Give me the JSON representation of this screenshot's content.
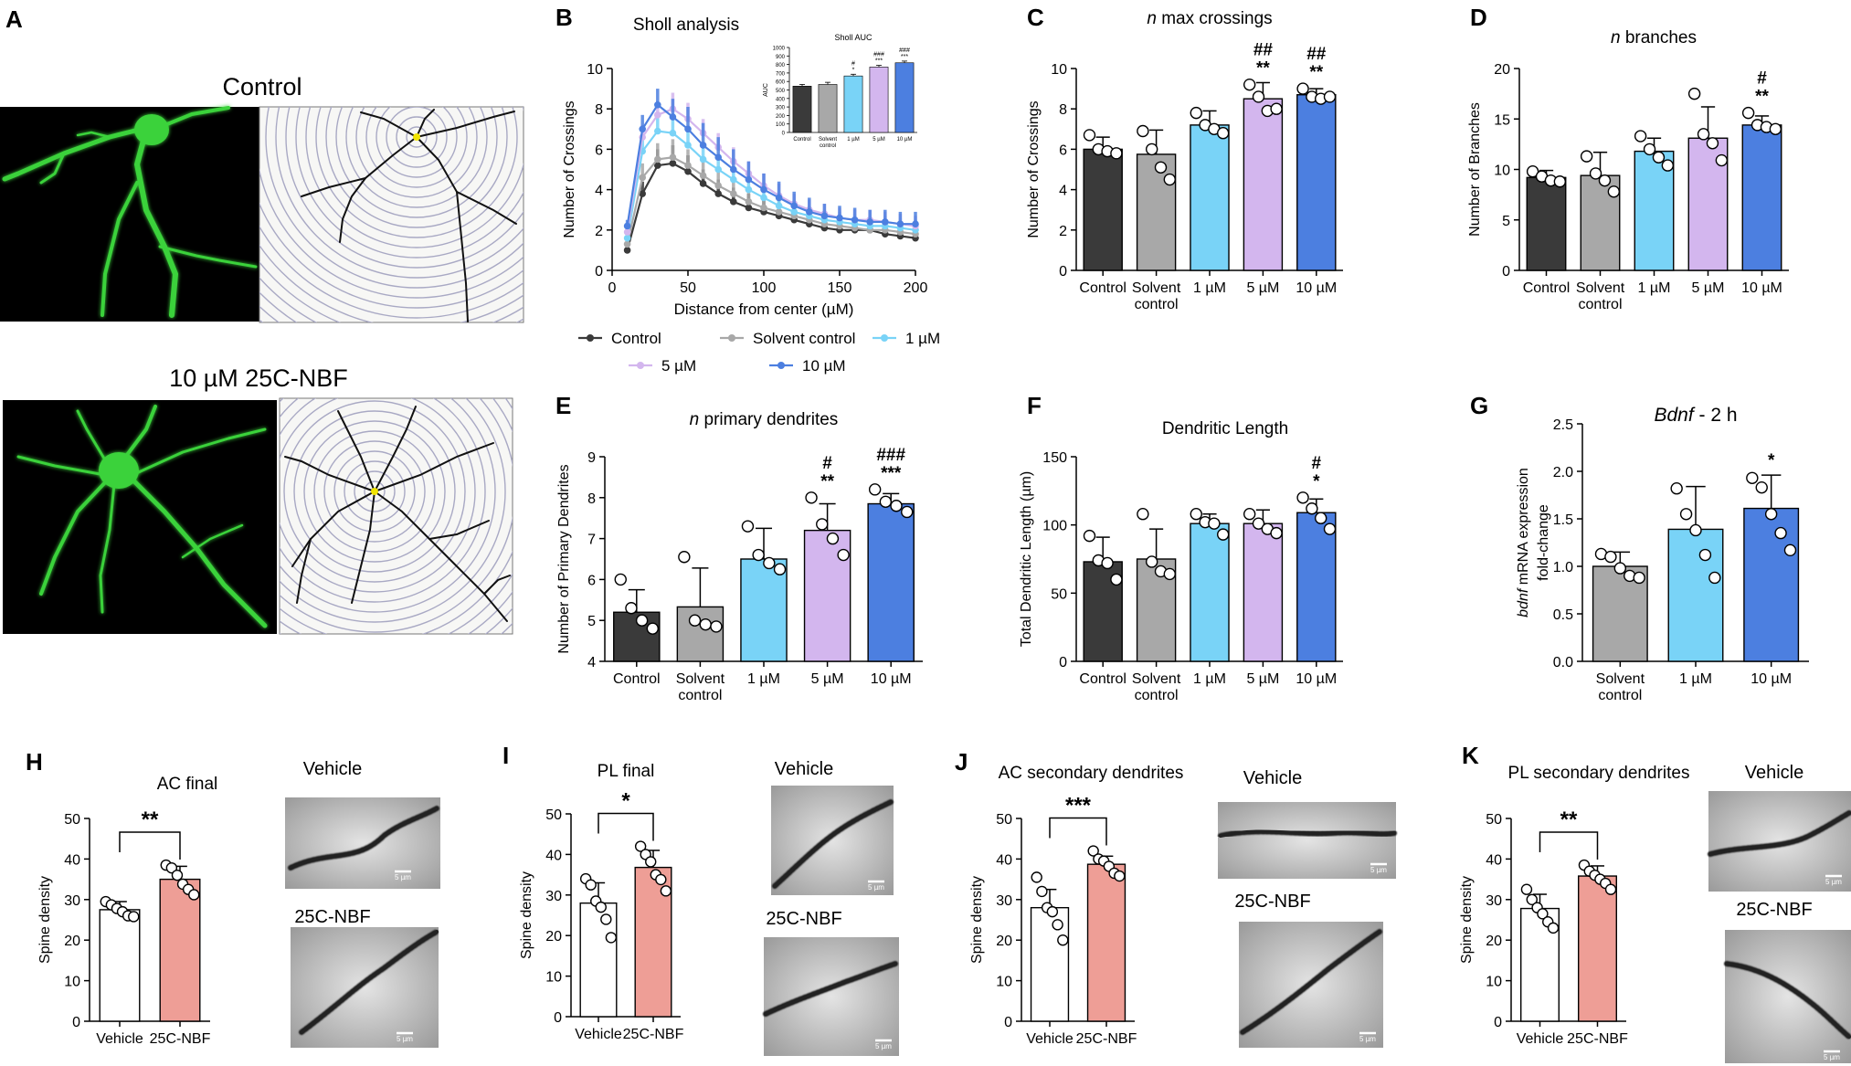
{
  "colors": {
    "control": "#3a3a3a",
    "solvent": "#a8a8a8",
    "um1": "#79d3f7",
    "um5": "#d3b6ee",
    "um10": "#4c7fe0",
    "vehicle": "#ffffff",
    "nbf": "#ee9e96",
    "neuron_green": "#3bd23b"
  },
  "panel_A": {
    "letter": "A",
    "top_title": "Control",
    "bottom_title": "10 µM 25C-NBF"
  },
  "micrographs": {
    "vehicle_label": "Vehicle",
    "treated_label": "25C-NBF",
    "scale_label": "5 µm"
  },
  "chart_data": [
    {
      "id": "B",
      "letter": "B",
      "type": "line",
      "title": "Sholl analysis",
      "xlabel": "Distance from center  (µM)",
      "ylabel": "Number of Crossings",
      "xlim": [
        0,
        200
      ],
      "ylim": [
        0,
        10
      ],
      "xticks": [
        0,
        50,
        100,
        150,
        200
      ],
      "yticks": [
        0,
        2,
        4,
        6,
        8,
        10
      ],
      "x": [
        10,
        20,
        30,
        40,
        50,
        60,
        70,
        80,
        90,
        100,
        110,
        120,
        130,
        140,
        150,
        160,
        170,
        180,
        190,
        200
      ],
      "legend": [
        "Control",
        "Solvent control",
        "1 µM",
        "5 µM",
        "10 µM"
      ],
      "series": [
        {
          "name": "Control",
          "color_key": "control",
          "values": [
            1.0,
            3.8,
            5.2,
            5.3,
            4.9,
            4.3,
            3.8,
            3.4,
            3.1,
            2.9,
            2.7,
            2.5,
            2.3,
            2.1,
            2.0,
            2.0,
            2.0,
            1.8,
            1.7,
            1.6
          ],
          "err": [
            0.3,
            0.6,
            0.8,
            0.9,
            0.8,
            0.7,
            0.7,
            0.7,
            0.7,
            0.6,
            0.6,
            0.6,
            0.5,
            0.5,
            0.5,
            0.5,
            0.5,
            0.5,
            0.5,
            0.5
          ]
        },
        {
          "name": "Solvent control",
          "color_key": "solvent",
          "values": [
            1.3,
            4.6,
            5.5,
            5.6,
            5.2,
            4.7,
            4.2,
            3.8,
            3.4,
            3.1,
            2.9,
            2.7,
            2.5,
            2.3,
            2.2,
            2.1,
            2.0,
            2.0,
            1.9,
            1.8
          ],
          "err": [
            0.3,
            0.7,
            0.8,
            0.9,
            0.8,
            0.7,
            0.7,
            0.7,
            0.6,
            0.6,
            0.6,
            0.5,
            0.5,
            0.5,
            0.5,
            0.5,
            0.5,
            0.5,
            0.5,
            0.5
          ]
        },
        {
          "name": "1 µM",
          "color_key": "um1",
          "values": [
            1.6,
            5.9,
            6.9,
            6.8,
            6.2,
            5.5,
            5.0,
            4.5,
            4.0,
            3.6,
            3.2,
            2.9,
            2.7,
            2.5,
            2.4,
            2.3,
            2.2,
            2.2,
            2.1,
            2.0
          ],
          "err": [
            0.3,
            0.6,
            0.7,
            0.8,
            0.8,
            0.7,
            0.7,
            0.6,
            0.6,
            0.6,
            0.5,
            0.5,
            0.5,
            0.5,
            0.5,
            0.5,
            0.5,
            0.5,
            0.5,
            0.5
          ]
        },
        {
          "name": "5 µM",
          "color_key": "um5",
          "values": [
            1.9,
            6.6,
            7.7,
            8.0,
            7.5,
            6.8,
            6.1,
            5.4,
            4.8,
            4.2,
            3.7,
            3.3,
            3.0,
            2.8,
            2.6,
            2.5,
            2.5,
            2.4,
            2.3,
            2.2
          ],
          "err": [
            0.3,
            0.6,
            0.7,
            0.8,
            0.8,
            0.7,
            0.7,
            0.7,
            0.6,
            0.6,
            0.6,
            0.5,
            0.5,
            0.5,
            0.5,
            0.5,
            0.5,
            0.5,
            0.5,
            0.5
          ]
        },
        {
          "name": "10 µM",
          "color_key": "um10",
          "values": [
            2.2,
            7.0,
            8.2,
            7.6,
            7.0,
            6.2,
            5.6,
            5.0,
            4.5,
            4.0,
            3.6,
            3.2,
            2.9,
            2.7,
            2.6,
            2.5,
            2.4,
            2.4,
            2.3,
            2.3
          ],
          "err": [
            0.3,
            0.7,
            0.8,
            0.9,
            1.1,
            1.1,
            1.0,
            1.0,
            0.9,
            0.8,
            0.8,
            0.7,
            0.7,
            0.6,
            0.6,
            0.6,
            0.6,
            0.6,
            0.6,
            0.6
          ]
        }
      ]
    },
    {
      "id": "B_inset",
      "type": "bar",
      "title": "Sholl AUC",
      "ylabel": "AUC",
      "ylim": [
        0,
        1000
      ],
      "yticks": [
        0,
        100,
        200,
        300,
        400,
        500,
        600,
        700,
        800,
        900,
        1000
      ],
      "categories": [
        "Control",
        "Solvent control",
        "1 µM",
        "5 µM",
        "10 µM"
      ],
      "color_keys": [
        "control",
        "solvent",
        "um1",
        "um5",
        "um10"
      ],
      "values": [
        545,
        565,
        665,
        770,
        820
      ],
      "err": [
        20,
        25,
        20,
        20,
        20
      ],
      "annotations": [
        {
          "index": 2,
          "lines": [
            "#",
            "*"
          ]
        },
        {
          "index": 3,
          "lines": [
            "###",
            "***"
          ]
        },
        {
          "index": 4,
          "lines": [
            "###",
            "***"
          ]
        }
      ]
    },
    {
      "id": "C",
      "letter": "C",
      "type": "bar",
      "title": "n max crossings",
      "title_italic_prefix": "n",
      "title_rest": " max crossings",
      "ylabel": "Number of Crossings",
      "ylim": [
        0,
        10
      ],
      "yticks": [
        0,
        2,
        4,
        6,
        8,
        10
      ],
      "categories": [
        "Control",
        "Solvent control",
        "1 µM",
        "5 µM",
        "10 µM"
      ],
      "color_keys": [
        "control",
        "solvent",
        "um1",
        "um5",
        "um10"
      ],
      "values": [
        6.0,
        5.75,
        7.2,
        8.5,
        8.7
      ],
      "err": [
        0.6,
        1.2,
        0.7,
        0.8,
        0.3
      ],
      "points": [
        [
          6.7,
          6.0,
          5.9,
          5.8
        ],
        [
          6.9,
          6.0,
          5.1,
          4.5
        ],
        [
          7.8,
          7.2,
          7.0,
          6.8
        ],
        [
          9.2,
          8.6,
          7.9,
          8.0
        ],
        [
          9.0,
          8.6,
          8.5,
          8.6
        ]
      ],
      "annotations": [
        {
          "index": 3,
          "lines": [
            "##",
            "**"
          ]
        },
        {
          "index": 4,
          "lines": [
            "##",
            "**"
          ]
        }
      ]
    },
    {
      "id": "D",
      "letter": "D",
      "type": "bar",
      "title": "n branches",
      "title_italic_prefix": "n",
      "title_rest": " branches",
      "ylabel": "Number of Branches",
      "ylim": [
        0,
        20
      ],
      "yticks": [
        0,
        5,
        10,
        15,
        20
      ],
      "categories": [
        "Control",
        "Solvent control",
        "1 µM",
        "5 µM",
        "10 µM"
      ],
      "color_keys": [
        "control",
        "solvent",
        "um1",
        "um5",
        "um10"
      ],
      "values": [
        9.2,
        9.4,
        11.8,
        13.1,
        14.4
      ],
      "err": [
        0.7,
        2.3,
        1.3,
        3.1,
        0.9
      ],
      "points": [
        [
          9.8,
          9.3,
          8.9,
          8.8
        ],
        [
          11.3,
          9.6,
          8.9,
          7.8
        ],
        [
          13.3,
          12.0,
          11.2,
          10.4
        ],
        [
          17.5,
          13.5,
          12.6,
          10.9
        ],
        [
          15.6,
          14.4,
          14.2,
          14.0
        ]
      ],
      "annotations": [
        {
          "index": 4,
          "lines": [
            "#",
            "**"
          ]
        }
      ]
    },
    {
      "id": "E",
      "letter": "E",
      "type": "bar",
      "title": "n primary dendrites",
      "title_italic_prefix": "n",
      "title_rest": " primary dendrites",
      "ylabel": "Number of Primary Dendrites",
      "ylim": [
        4,
        9
      ],
      "yticks": [
        4,
        5,
        6,
        7,
        8,
        9
      ],
      "categories": [
        "Control",
        "Solvent control",
        "1 µM",
        "5 µM",
        "10 µM"
      ],
      "color_keys": [
        "control",
        "solvent",
        "um1",
        "um5",
        "um10"
      ],
      "values": [
        5.2,
        5.33,
        6.5,
        7.2,
        7.85
      ],
      "err": [
        0.55,
        0.95,
        0.75,
        0.65,
        0.25
      ],
      "points": [
        [
          6.0,
          5.3,
          5.0,
          4.8
        ],
        [
          6.55,
          5.0,
          4.9,
          4.85
        ],
        [
          7.3,
          6.6,
          6.4,
          6.25
        ],
        [
          8.0,
          7.35,
          7.0,
          6.6
        ],
        [
          8.2,
          7.9,
          7.8,
          7.65
        ]
      ],
      "annotations": [
        {
          "index": 3,
          "lines": [
            "#",
            "**"
          ]
        },
        {
          "index": 4,
          "lines": [
            "###",
            "***"
          ]
        }
      ]
    },
    {
      "id": "F",
      "letter": "F",
      "type": "bar",
      "title": "Dendritic Length",
      "ylabel": "Total Dendritic Length (µm)",
      "ylim": [
        0,
        150
      ],
      "yticks": [
        0,
        50,
        100,
        150
      ],
      "categories": [
        "Control",
        "Solvent control",
        "1 µM",
        "5 µM",
        "10 µM"
      ],
      "color_keys": [
        "control",
        "solvent",
        "um1",
        "um5",
        "um10"
      ],
      "values": [
        73,
        75,
        101,
        101,
        109
      ],
      "err": [
        18,
        22,
        7,
        10,
        10
      ],
      "points": [
        [
          92,
          74,
          72,
          60
        ],
        [
          108,
          73,
          66,
          64
        ],
        [
          108,
          102,
          101,
          93
        ],
        [
          108,
          101,
          97,
          94
        ],
        [
          120,
          112,
          105,
          97
        ]
      ],
      "annotations": [
        {
          "index": 4,
          "lines": [
            "#",
            "*"
          ]
        }
      ]
    },
    {
      "id": "G",
      "letter": "G",
      "type": "bar",
      "title": "Bdnf - 2 h",
      "title_italic_prefix": "Bdnf",
      "title_rest": " - 2 h",
      "ylabel_line1": "bdnf mRNA expression",
      "ylabel_italic_prefix": "bdnf",
      "ylabel_line1_rest": " mRNA expression",
      "ylabel_line2": "fold-change",
      "ylim": [
        0,
        2.5
      ],
      "yticks": [
        0.0,
        0.5,
        1.0,
        1.5,
        2.0,
        2.5
      ],
      "categories": [
        "Solvent control",
        "1 µM",
        "10 µM"
      ],
      "color_keys": [
        "solvent",
        "um1",
        "um10"
      ],
      "values": [
        1.0,
        1.39,
        1.61
      ],
      "err": [
        0.15,
        0.45,
        0.35
      ],
      "points": [
        [
          1.13,
          1.1,
          0.98,
          0.9,
          0.88
        ],
        [
          1.82,
          1.55,
          1.38,
          1.12,
          0.88
        ],
        [
          1.93,
          1.83,
          1.55,
          1.35,
          1.17
        ]
      ],
      "annotations": [
        {
          "index": 2,
          "lines": [
            "*"
          ]
        }
      ]
    },
    {
      "id": "H",
      "letter": "H",
      "type": "bar",
      "title": "AC final",
      "ylabel": "Spine density",
      "ylim": [
        0,
        50
      ],
      "yticks": [
        0,
        10,
        20,
        30,
        40,
        50
      ],
      "categories": [
        "Vehicle",
        "25C-NBF"
      ],
      "color_keys": [
        "vehicle",
        "nbf"
      ],
      "values": [
        27.5,
        35.0
      ],
      "err": [
        2.0,
        3.2
      ],
      "points": [
        [
          29.5,
          28.7,
          27.8,
          27.0,
          26.0,
          25.8
        ],
        [
          38.5,
          37.8,
          36.0,
          33.8,
          32.5,
          31.2
        ]
      ],
      "significance": "**"
    },
    {
      "id": "I",
      "letter": "I",
      "type": "bar",
      "title": "PL final",
      "ylabel": "Spine density",
      "ylim": [
        0,
        50
      ],
      "yticks": [
        0,
        10,
        20,
        30,
        40,
        50
      ],
      "categories": [
        "Vehicle",
        "25C-NBF"
      ],
      "color_keys": [
        "vehicle",
        "nbf"
      ],
      "values": [
        28.0,
        36.8
      ],
      "err": [
        5.0,
        4.2
      ],
      "points": [
        [
          34.0,
          32.5,
          28.5,
          27.0,
          24.0,
          19.5
        ],
        [
          42.0,
          40.0,
          38.2,
          35.0,
          33.8,
          31.0
        ]
      ],
      "significance": "*"
    },
    {
      "id": "J",
      "letter": "J",
      "type": "bar",
      "title": "AC secondary dendrites",
      "ylabel": "Spine density",
      "ylim": [
        0,
        50
      ],
      "yticks": [
        0,
        10,
        20,
        30,
        40,
        50
      ],
      "categories": [
        "Vehicle",
        "25C-NBF"
      ],
      "color_keys": [
        "vehicle",
        "nbf"
      ],
      "values": [
        28.0,
        38.7
      ],
      "err": [
        4.5,
        2.0
      ],
      "points": [
        [
          35.5,
          32.0,
          28.0,
          27.0,
          23.8,
          20.0
        ],
        [
          42.0,
          40.0,
          39.5,
          38.2,
          36.5,
          35.8
        ]
      ],
      "significance": "***"
    },
    {
      "id": "K",
      "letter": "K",
      "type": "bar",
      "title": "PL secondary dendrites",
      "ylabel": "Spine density",
      "ylim": [
        0,
        50
      ],
      "yticks": [
        0,
        10,
        20,
        30,
        40,
        50
      ],
      "categories": [
        "Vehicle",
        "25C-NBF"
      ],
      "color_keys": [
        "vehicle",
        "nbf"
      ],
      "values": [
        27.8,
        35.8
      ],
      "err": [
        3.5,
        2.5
      ],
      "points": [
        [
          32.5,
          30.0,
          28.0,
          26.5,
          24.5,
          23.0
        ],
        [
          38.5,
          37.0,
          36.0,
          35.0,
          34.0,
          32.5
        ]
      ],
      "significance": "**"
    }
  ]
}
